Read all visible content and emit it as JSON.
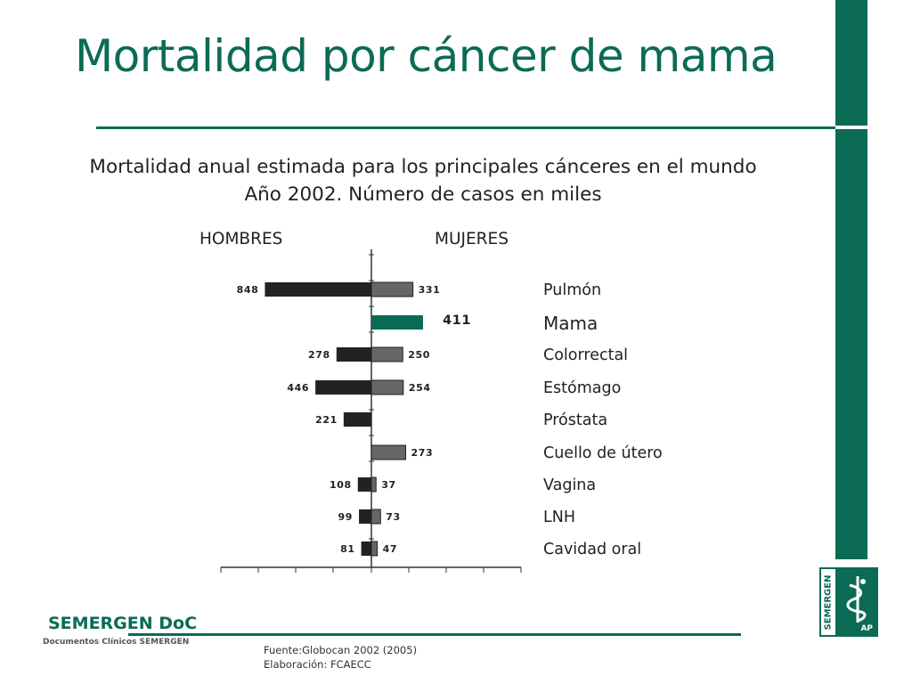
{
  "slide": {
    "title": "Mortalidad por cáncer de mama",
    "subtitle_line1": "Mortalidad anual estimada para los principales cánceres en el mundo",
    "subtitle_line2": "Año 2002. Número de casos en miles",
    "label_hombres": "HOMBRES",
    "label_mujeres": "MUJERES",
    "footer_brand": "SEMERGEN DoC",
    "footer_sub": "Documentos Clínicos SEMERGEN",
    "source_line1": "Fuente:Globocan 2002 (2005)",
    "source_line2": "Elaboración: FCAECC",
    "logo_text": "SEMERGEN",
    "logo_ap": "AP"
  },
  "colors": {
    "accent": "#0b6b55",
    "hombres_bar": "#222222",
    "mujeres_bar": "#666666",
    "highlight_bar": "#0b6b55"
  },
  "chart_data": {
    "type": "bar",
    "orientation": "horizontal",
    "layout": "diverging",
    "title": "Mortalidad anual estimada para los principales cánceres en el mundo",
    "subtitle": "Año 2002. Número de casos en miles",
    "categories": [
      "Pulmón",
      "Mama",
      "Colorrectal",
      "Estómago",
      "Próstata",
      "Cuello de útero",
      "Vagina",
      "LNH",
      "Cavidad oral"
    ],
    "series": [
      {
        "name": "HOMBRES",
        "side": "left",
        "values": [
          848,
          null,
          278,
          446,
          221,
          null,
          108,
          99,
          81
        ]
      },
      {
        "name": "MUJERES",
        "side": "right",
        "values": [
          331,
          411,
          250,
          254,
          null,
          273,
          37,
          73,
          47
        ]
      }
    ],
    "highlight_category": "Mama",
    "legend": "none",
    "grid": false
  }
}
